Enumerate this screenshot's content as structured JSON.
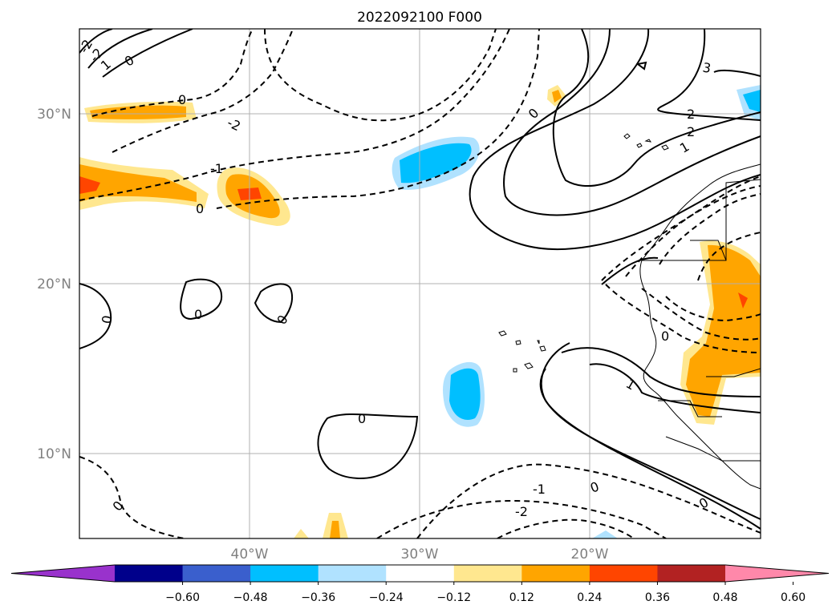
{
  "title": "2022092100 F000",
  "map": {
    "lat_labels": [
      "30°N",
      "20°N",
      "10°N"
    ],
    "lon_labels": [
      "40°W",
      "30°W",
      "20°W"
    ],
    "contour_labels": {
      "c0": "0",
      "c1": "1",
      "c2": "2",
      "c3": "3",
      "cm1": "-1",
      "cm2": "-2"
    }
  },
  "colorbar": {
    "ticks": [
      "−0.60",
      "−0.48",
      "−0.36",
      "−0.24",
      "−0.12",
      "0.12",
      "0.24",
      "0.36",
      "0.48",
      "0.60"
    ],
    "colors": [
      "#9932cc",
      "#00008b",
      "#3a5fcd",
      "#00bfff",
      "#b0e2ff",
      "#ffffff",
      "#ffe78f",
      "#ffa500",
      "#ff4500",
      "#b22222",
      "#ff88aa"
    ]
  },
  "colors": {
    "orange": "#ffa500",
    "yellow": "#ffe78f",
    "red": "#ff4500",
    "cyan": "#00bfff",
    "lightblue": "#b0e2ff"
  }
}
